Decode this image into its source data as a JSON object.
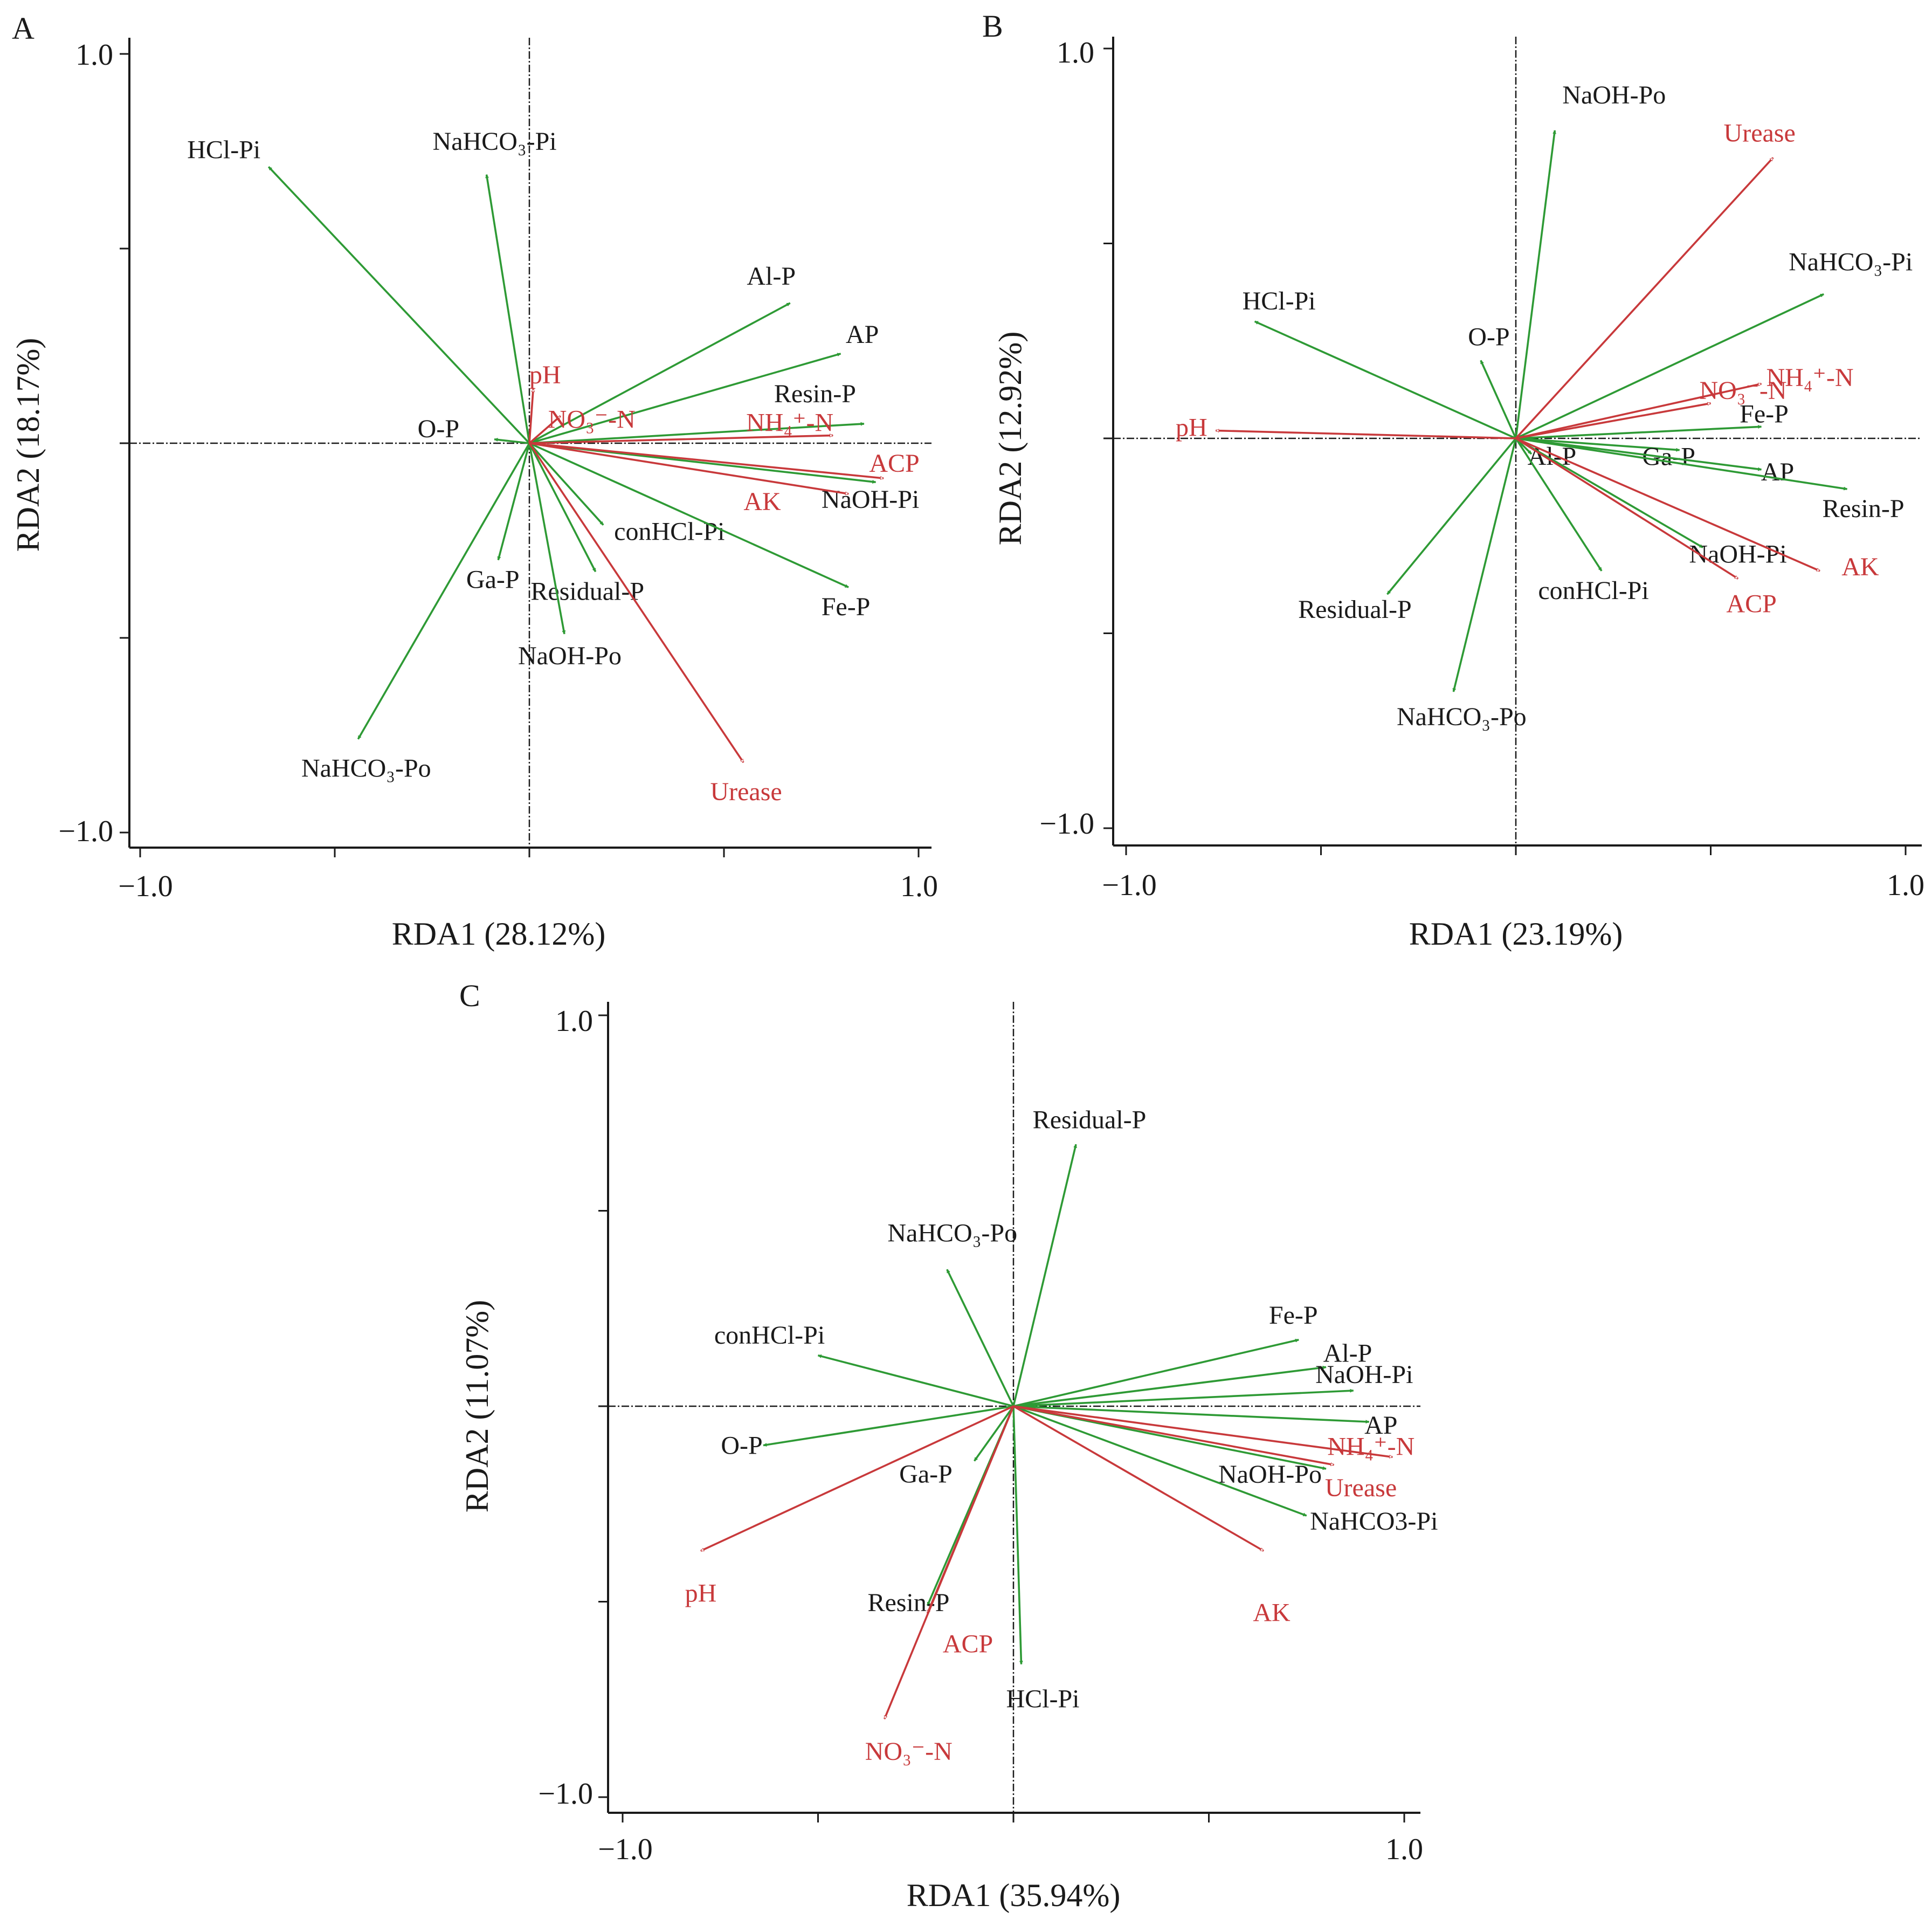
{
  "colors": {
    "species": "#2e9a35",
    "env": "#c8393b",
    "text": "#1a1a1a"
  },
  "chart_data": [
    {
      "type": "scatter",
      "panel": "A",
      "xlabel": "RDA1 (28.12%)",
      "ylabel": "RDA2 (18.17%)",
      "xlim": [
        -1.0,
        1.0
      ],
      "ylim": [
        -1.0,
        1.0
      ],
      "x_tick_labels": [
        "−1.0",
        "1.0"
      ],
      "y_tick_labels": [
        "1.0",
        "−1.0"
      ],
      "species_vectors": [
        {
          "name": "HCl-Pi",
          "x": -0.67,
          "y": 0.71
        },
        {
          "name": "NaHCO₃-Pi",
          "x": -0.11,
          "y": 0.69
        },
        {
          "name": "Al-P",
          "x": 0.67,
          "y": 0.36
        },
        {
          "name": "AP",
          "x": 0.8,
          "y": 0.23
        },
        {
          "name": "Resin-P",
          "x": 0.86,
          "y": 0.05
        },
        {
          "name": "O-P",
          "x": -0.09,
          "y": 0.01
        },
        {
          "name": "NaOH-Pi",
          "x": 0.89,
          "y": -0.1
        },
        {
          "name": "conHCl-Pi",
          "x": 0.19,
          "y": -0.21
        },
        {
          "name": "Ga-P",
          "x": -0.08,
          "y": -0.3
        },
        {
          "name": "Residual-P",
          "x": 0.17,
          "y": -0.33
        },
        {
          "name": "Fe-P",
          "x": 0.82,
          "y": -0.37
        },
        {
          "name": "NaOH-Po",
          "x": 0.09,
          "y": -0.49
        },
        {
          "name": "NaHCO₃-Po",
          "x": -0.44,
          "y": -0.76
        }
      ],
      "env_vectors": [
        {
          "name": "pH",
          "x": 0.01,
          "y": 0.14
        },
        {
          "name": "NO₃⁻-N",
          "x": 0.08,
          "y": 0.07
        },
        {
          "name": "NH₄⁺-N",
          "x": 0.78,
          "y": 0.02
        },
        {
          "name": "ACP",
          "x": 0.91,
          "y": -0.09
        },
        {
          "name": "AK",
          "x": 0.82,
          "y": -0.13
        },
        {
          "name": "Urease",
          "x": 0.55,
          "y": -0.82
        }
      ]
    },
    {
      "type": "scatter",
      "panel": "B",
      "xlabel": "RDA1 (23.19%)",
      "ylabel": "RDA2 (12.92%)",
      "xlim": [
        -1.0,
        1.0
      ],
      "ylim": [
        -1.0,
        1.0
      ],
      "x_tick_labels": [
        "−1.0",
        "1.0"
      ],
      "y_tick_labels": [
        "1.0",
        "−1.0"
      ],
      "species_vectors": [
        {
          "name": "NaOH-Po",
          "x": 0.1,
          "y": 0.79
        },
        {
          "name": "HCl-Pi",
          "x": -0.67,
          "y": 0.3
        },
        {
          "name": "NaHCO₃-Pi",
          "x": 0.79,
          "y": 0.37
        },
        {
          "name": "O-P",
          "x": -0.09,
          "y": 0.2
        },
        {
          "name": "Fe-P",
          "x": 0.63,
          "y": 0.03
        },
        {
          "name": "Ga-P",
          "x": 0.42,
          "y": -0.03
        },
        {
          "name": "AP",
          "x": 0.63,
          "y": -0.08
        },
        {
          "name": "Resin-P",
          "x": 0.85,
          "y": -0.13
        },
        {
          "name": "Al-P",
          "x": 0.04,
          "y": -0.04
        },
        {
          "name": "NaOH-Pi",
          "x": 0.48,
          "y": -0.28
        },
        {
          "name": "conHCl-Pi",
          "x": 0.22,
          "y": -0.34
        },
        {
          "name": "Residual-P",
          "x": -0.33,
          "y": -0.4
        },
        {
          "name": "NaHCO₃-Po",
          "x": -0.16,
          "y": -0.65
        }
      ],
      "env_vectors": [
        {
          "name": "Urease",
          "x": 0.66,
          "y": 0.72
        },
        {
          "name": "NH₄⁺-N",
          "x": 0.63,
          "y": 0.14
        },
        {
          "name": "NO₃⁻-N",
          "x": 0.5,
          "y": 0.09
        },
        {
          "name": "pH",
          "x": -0.77,
          "y": 0.02
        },
        {
          "name": "ACP",
          "x": 0.57,
          "y": -0.36
        },
        {
          "name": "AK",
          "x": 0.78,
          "y": -0.34
        }
      ]
    },
    {
      "type": "scatter",
      "panel": "C",
      "xlabel": "RDA1 (35.94%)",
      "ylabel": "RDA2 (11.07%)",
      "xlim": [
        -1.0,
        1.0
      ],
      "ylim": [
        -1.0,
        1.0
      ],
      "x_tick_labels": [
        "−1.0",
        "1.0"
      ],
      "y_tick_labels": [
        "1.0",
        "−1.0"
      ],
      "species_vectors": [
        {
          "name": "Residual-P",
          "x": 0.16,
          "y": 0.67
        },
        {
          "name": "NaHCO₃-Po",
          "x": -0.17,
          "y": 0.35
        },
        {
          "name": "conHCl-Pi",
          "x": -0.5,
          "y": 0.13
        },
        {
          "name": "Fe-P",
          "x": 0.73,
          "y": 0.17
        },
        {
          "name": "Al-P",
          "x": 0.8,
          "y": 0.1
        },
        {
          "name": "NaOH-Pi",
          "x": 0.87,
          "y": 0.04
        },
        {
          "name": "AP",
          "x": 0.91,
          "y": -0.04
        },
        {
          "name": "O-P",
          "x": -0.64,
          "y": -0.1
        },
        {
          "name": "Ga-P",
          "x": -0.1,
          "y": -0.14
        },
        {
          "name": "NaOH-Po",
          "x": 0.8,
          "y": -0.16
        },
        {
          "name": "NaHCO3-Pi",
          "x": 0.75,
          "y": -0.28
        },
        {
          "name": "Resin-P",
          "x": -0.22,
          "y": -0.51
        },
        {
          "name": "HCl-Pi",
          "x": 0.02,
          "y": -0.66
        }
      ],
      "env_vectors": [
        {
          "name": "NH₄⁺-N",
          "x": 0.97,
          "y": -0.13
        },
        {
          "name": "Urease",
          "x": 0.82,
          "y": -0.15
        },
        {
          "name": "AK",
          "x": 0.64,
          "y": -0.37
        },
        {
          "name": "pH",
          "x": -0.8,
          "y": -0.37
        },
        {
          "name": "ACP",
          "x": -0.22,
          "y": -0.53
        },
        {
          "name": "NO₃⁻-N",
          "x": -0.33,
          "y": -0.8
        }
      ]
    }
  ]
}
